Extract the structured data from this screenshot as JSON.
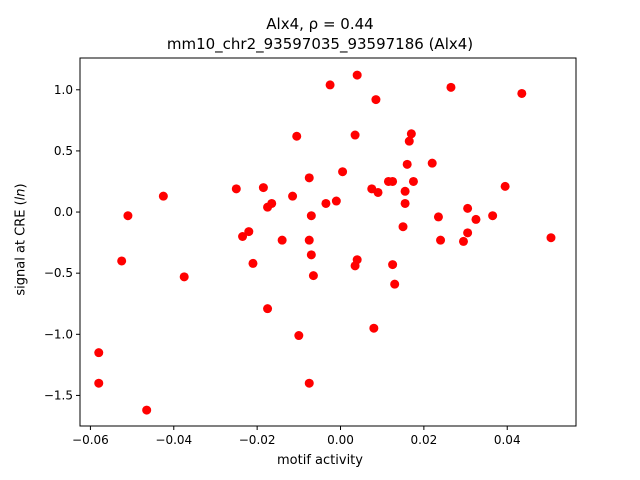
{
  "chart_data": {
    "type": "scatter",
    "title": "Alx4, ρ = 0.44",
    "subtitle": "mm10_chr2_93597035_93597186 (Alx4)",
    "xlabel": "motif activity",
    "ylabel": "signal at CRE (ln)",
    "xlim": [
      -0.0625,
      0.0565
    ],
    "ylim": [
      -1.75,
      1.26
    ],
    "xticks": [
      -0.06,
      -0.04,
      -0.02,
      0.0,
      0.02,
      0.04
    ],
    "xtick_labels": [
      "−0.06",
      "−0.04",
      "−0.02",
      "0.00",
      "0.02",
      "0.04"
    ],
    "yticks": [
      -1.5,
      -1.0,
      -0.5,
      0.0,
      0.5,
      1.0
    ],
    "ytick_labels": [
      "−1.5",
      "−1.0",
      "−0.5",
      "0.0",
      "0.5",
      "1.0"
    ],
    "grid": false,
    "marker_color": "#ff0000",
    "points": [
      {
        "x": 0.004,
        "y": 1.12
      },
      {
        "x": -0.0025,
        "y": 1.04
      },
      {
        "x": 0.0265,
        "y": 1.02
      },
      {
        "x": 0.0435,
        "y": 0.97
      },
      {
        "x": 0.0085,
        "y": 0.92
      },
      {
        "x": -0.0105,
        "y": 0.62
      },
      {
        "x": 0.0035,
        "y": 0.63
      },
      {
        "x": 0.017,
        "y": 0.64
      },
      {
        "x": 0.0165,
        "y": 0.58
      },
      {
        "x": 0.022,
        "y": 0.4
      },
      {
        "x": 0.016,
        "y": 0.39
      },
      {
        "x": 0.0005,
        "y": 0.33
      },
      {
        "x": -0.0075,
        "y": 0.28
      },
      {
        "x": 0.0115,
        "y": 0.25
      },
      {
        "x": 0.0125,
        "y": 0.25
      },
      {
        "x": 0.0175,
        "y": 0.25
      },
      {
        "x": 0.0395,
        "y": 0.21
      },
      {
        "x": -0.025,
        "y": 0.19
      },
      {
        "x": -0.0185,
        "y": 0.2
      },
      {
        "x": 0.0075,
        "y": 0.19
      },
      {
        "x": 0.0155,
        "y": 0.17
      },
      {
        "x": 0.009,
        "y": 0.16
      },
      {
        "x": -0.0425,
        "y": 0.13
      },
      {
        "x": -0.0115,
        "y": 0.13
      },
      {
        "x": -0.001,
        "y": 0.09
      },
      {
        "x": -0.0035,
        "y": 0.07
      },
      {
        "x": -0.0165,
        "y": 0.07
      },
      {
        "x": 0.0155,
        "y": 0.07
      },
      {
        "x": -0.0175,
        "y": 0.04
      },
      {
        "x": 0.0305,
        "y": 0.03
      },
      {
        "x": -0.051,
        "y": -0.03
      },
      {
        "x": -0.007,
        "y": -0.03
      },
      {
        "x": 0.0235,
        "y": -0.04
      },
      {
        "x": 0.0365,
        "y": -0.03
      },
      {
        "x": 0.0325,
        "y": -0.06
      },
      {
        "x": 0.015,
        "y": -0.12
      },
      {
        "x": -0.022,
        "y": -0.16
      },
      {
        "x": 0.0305,
        "y": -0.17
      },
      {
        "x": -0.0235,
        "y": -0.2
      },
      {
        "x": -0.014,
        "y": -0.23
      },
      {
        "x": -0.0075,
        "y": -0.23
      },
      {
        "x": 0.024,
        "y": -0.23
      },
      {
        "x": 0.0295,
        "y": -0.24
      },
      {
        "x": 0.0505,
        "y": -0.21
      },
      {
        "x": -0.007,
        "y": -0.35
      },
      {
        "x": 0.004,
        "y": -0.39
      },
      {
        "x": -0.0525,
        "y": -0.4
      },
      {
        "x": -0.021,
        "y": -0.42
      },
      {
        "x": 0.0125,
        "y": -0.43
      },
      {
        "x": 0.0035,
        "y": -0.44
      },
      {
        "x": -0.0065,
        "y": -0.52
      },
      {
        "x": -0.0375,
        "y": -0.53
      },
      {
        "x": 0.013,
        "y": -0.59
      },
      {
        "x": -0.0175,
        "y": -0.79
      },
      {
        "x": 0.008,
        "y": -0.95
      },
      {
        "x": -0.01,
        "y": -1.01
      },
      {
        "x": -0.058,
        "y": -1.15
      },
      {
        "x": -0.058,
        "y": -1.4
      },
      {
        "x": -0.0075,
        "y": -1.4
      },
      {
        "x": -0.0465,
        "y": -1.62
      }
    ]
  }
}
